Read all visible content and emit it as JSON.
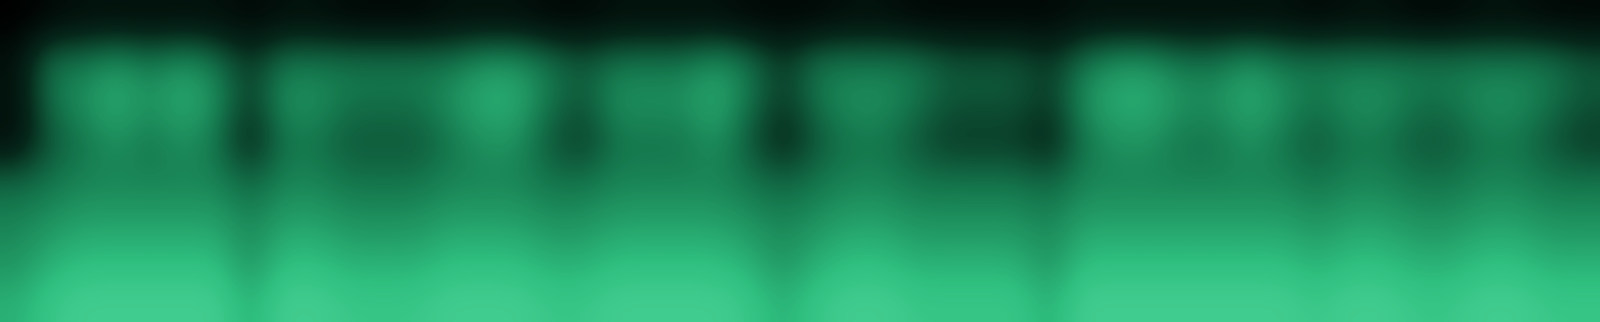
{
  "chart_data": {
    "type": "spectrogram",
    "cells": [
      [
        0.7,
        0.8,
        0.85,
        0.85,
        0.85,
        0.85,
        0.85,
        0.7,
        0.85,
        0.85,
        0.8,
        0.8,
        0.8,
        0.85,
        0.85,
        0.85,
        0.8,
        0.8,
        0.85,
        0.85,
        0.85,
        0.85,
        0.8,
        0.7,
        0.8,
        0.85,
        0.85,
        0.8,
        0.8,
        0.8,
        0.8,
        0.7,
        0.85,
        0.85,
        0.85,
        0.85,
        0.85,
        0.85,
        0.85,
        0.8,
        0.85,
        0.85,
        0.8,
        0.8,
        0.85,
        0.85,
        0.8,
        0.8
      ],
      [
        0.6,
        0.7,
        0.75,
        0.75,
        0.75,
        0.75,
        0.75,
        0.6,
        0.75,
        0.75,
        0.7,
        0.7,
        0.7,
        0.75,
        0.75,
        0.75,
        0.7,
        0.7,
        0.75,
        0.75,
        0.75,
        0.75,
        0.7,
        0.6,
        0.7,
        0.75,
        0.75,
        0.7,
        0.7,
        0.7,
        0.7,
        0.6,
        0.75,
        0.75,
        0.75,
        0.75,
        0.75,
        0.75,
        0.75,
        0.7,
        0.75,
        0.75,
        0.7,
        0.7,
        0.75,
        0.75,
        0.7,
        0.7
      ],
      [
        0.55,
        0.6,
        0.65,
        0.65,
        0.65,
        0.65,
        0.65,
        0.55,
        0.65,
        0.65,
        0.6,
        0.6,
        0.6,
        0.65,
        0.65,
        0.65,
        0.6,
        0.6,
        0.65,
        0.65,
        0.65,
        0.65,
        0.6,
        0.55,
        0.6,
        0.65,
        0.65,
        0.6,
        0.6,
        0.6,
        0.6,
        0.55,
        0.65,
        0.65,
        0.65,
        0.65,
        0.65,
        0.65,
        0.65,
        0.6,
        0.65,
        0.65,
        0.6,
        0.6,
        0.65,
        0.65,
        0.6,
        0.6
      ],
      [
        0.45,
        0.5,
        0.55,
        0.55,
        0.55,
        0.55,
        0.55,
        0.45,
        0.55,
        0.55,
        0.5,
        0.5,
        0.5,
        0.55,
        0.55,
        0.55,
        0.5,
        0.5,
        0.55,
        0.55,
        0.55,
        0.55,
        0.5,
        0.45,
        0.5,
        0.55,
        0.55,
        0.5,
        0.5,
        0.5,
        0.5,
        0.45,
        0.55,
        0.55,
        0.55,
        0.55,
        0.55,
        0.55,
        0.55,
        0.5,
        0.55,
        0.55,
        0.5,
        0.5,
        0.55,
        0.55,
        0.5,
        0.5
      ],
      [
        0.1,
        0.4,
        0.5,
        0.6,
        0.5,
        0.6,
        0.5,
        0.2,
        0.5,
        0.5,
        0.4,
        0.4,
        0.4,
        0.5,
        0.6,
        0.6,
        0.4,
        0.3,
        0.5,
        0.5,
        0.5,
        0.6,
        0.4,
        0.2,
        0.4,
        0.5,
        0.5,
        0.4,
        0.3,
        0.3,
        0.3,
        0.2,
        0.5,
        0.6,
        0.6,
        0.5,
        0.5,
        0.6,
        0.5,
        0.4,
        0.5,
        0.5,
        0.4,
        0.4,
        0.5,
        0.5,
        0.4,
        0.3
      ],
      [
        0.1,
        0.5,
        0.6,
        0.7,
        0.6,
        0.7,
        0.6,
        0.3,
        0.6,
        0.6,
        0.5,
        0.5,
        0.5,
        0.6,
        0.7,
        0.7,
        0.5,
        0.4,
        0.6,
        0.6,
        0.6,
        0.7,
        0.5,
        0.3,
        0.5,
        0.6,
        0.6,
        0.5,
        0.4,
        0.4,
        0.4,
        0.3,
        0.6,
        0.7,
        0.7,
        0.6,
        0.6,
        0.7,
        0.6,
        0.5,
        0.6,
        0.6,
        0.5,
        0.5,
        0.6,
        0.6,
        0.5,
        0.4
      ],
      [
        0.1,
        0.5,
        0.5,
        0.6,
        0.5,
        0.6,
        0.5,
        0.3,
        0.5,
        0.5,
        0.5,
        0.5,
        0.5,
        0.5,
        0.6,
        0.6,
        0.5,
        0.4,
        0.5,
        0.5,
        0.5,
        0.6,
        0.5,
        0.3,
        0.5,
        0.5,
        0.5,
        0.5,
        0.4,
        0.4,
        0.4,
        0.3,
        0.5,
        0.6,
        0.6,
        0.5,
        0.5,
        0.6,
        0.5,
        0.5,
        0.5,
        0.5,
        0.5,
        0.5,
        0.5,
        0.5,
        0.5,
        0.4
      ],
      [
        0.0,
        0.05,
        0.1,
        0.1,
        0.1,
        0.1,
        0.1,
        0.05,
        0.1,
        0.1,
        0.05,
        0.05,
        0.05,
        0.1,
        0.1,
        0.1,
        0.05,
        0.05,
        0.1,
        0.1,
        0.1,
        0.1,
        0.05,
        0.05,
        0.05,
        0.1,
        0.1,
        0.05,
        0.05,
        0.05,
        0.05,
        0.05,
        0.1,
        0.1,
        0.1,
        0.1,
        0.1,
        0.1,
        0.1,
        0.05,
        0.1,
        0.1,
        0.05,
        0.05,
        0.1,
        0.1,
        0.05,
        0.05
      ]
    ],
    "value_range": [
      0,
      1
    ],
    "tick_labels": false
  }
}
